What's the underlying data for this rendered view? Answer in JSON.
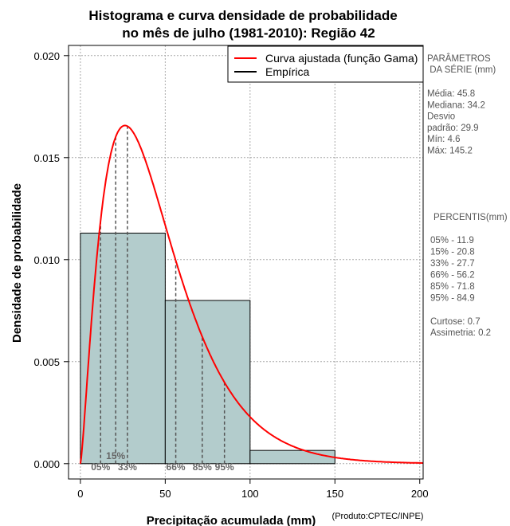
{
  "chart_data": {
    "type": "bar",
    "title_line1": "Histograma e curva densidade de probabilidade",
    "title_line2": "no mês de julho (1981-2010): Região 42",
    "xlabel": "Precipitação acumulada (mm)",
    "ylabel": "Densidade de probabilidade",
    "credit": "(Produto:CPTEC/INPE)",
    "xlim": [
      -7,
      202
    ],
    "ylim": [
      -0.00075,
      0.0205
    ],
    "xticks": [
      0,
      50,
      100,
      150,
      200
    ],
    "xtick_labels": [
      "0",
      "50",
      "100",
      "150",
      "200"
    ],
    "yticks": [
      0,
      0.005,
      0.01,
      0.015,
      0.02
    ],
    "ytick_labels": [
      "0.000",
      "0.005",
      "0.010",
      "0.015",
      "0.020"
    ],
    "grid": true,
    "histogram": [
      {
        "from": 0,
        "to": 50,
        "density": 0.0113
      },
      {
        "from": 50,
        "to": 100,
        "density": 0.008
      },
      {
        "from": 100,
        "to": 150,
        "density": 0.00065
      }
    ],
    "gamma_fit": {
      "shape": 2.346,
      "scale": 19.52
    },
    "percentile_marks": [
      {
        "label": "05%",
        "x": 11.9
      },
      {
        "label": "15%",
        "x": 20.8
      },
      {
        "label": "33%",
        "x": 27.7
      },
      {
        "label": "66%",
        "x": 56.2
      },
      {
        "label": "85%",
        "x": 71.8
      },
      {
        "label": "95%",
        "x": 84.9
      }
    ],
    "legend": {
      "position": "top-right",
      "entries": [
        {
          "label": "Curva ajustada (função Gama)",
          "color": "#ff0000"
        },
        {
          "label": "Empírica",
          "color": "#000000"
        }
      ]
    },
    "colors": {
      "bar_fill": "#b3cccc",
      "curve": "#ff0000"
    }
  },
  "side_panel": {
    "params_title_1": "PARÂMETROS",
    "params_title_2": " DA SÉRIE (mm)",
    "params": [
      "Média:  45.8",
      "Mediana:  34.2",
      "Desvio",
      "padrão:  29.9",
      "Mín:  4.6",
      "Máx:  145.2"
    ],
    "percentis_title": "PERCENTIS(mm)",
    "percentis": [
      "05% -   11.9",
      "15% -   20.8",
      "33% -   27.7",
      "66% -   56.2",
      "85% -   71.8",
      "95% -   84.9"
    ],
    "curtose": "Curtose:  0.7",
    "assimetria": "Assimetria:  0.2"
  }
}
